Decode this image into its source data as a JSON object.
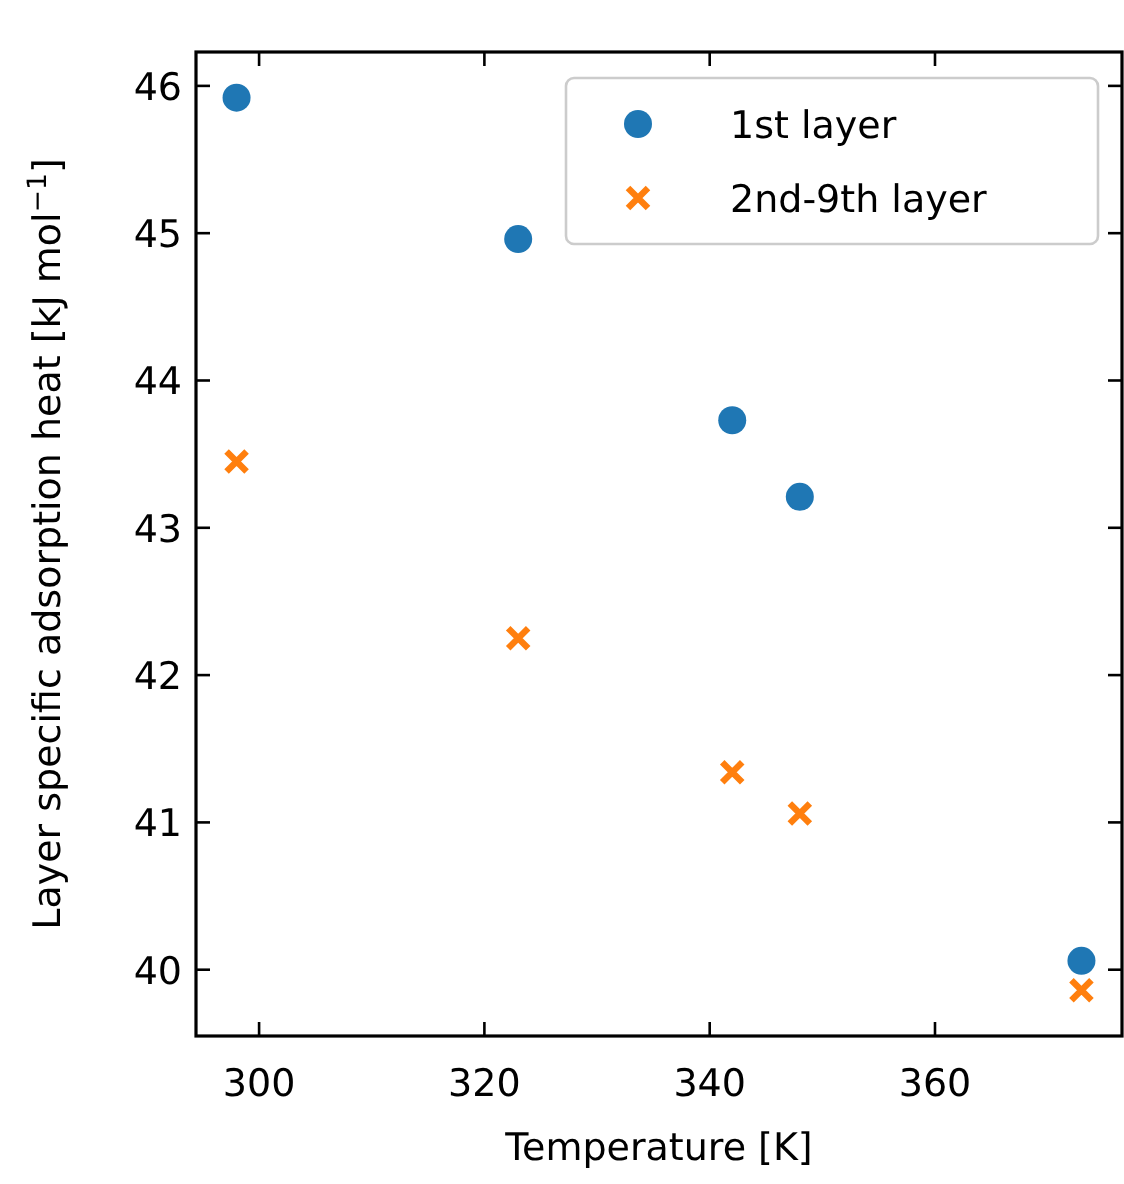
{
  "chart_data": {
    "type": "scatter",
    "xlabel": "Temperature [K]",
    "ylabel": "Layer specific adsorption heat [kJ mol$^{−1}$]",
    "x": [
      298,
      323,
      342,
      348,
      373
    ],
    "series": [
      {
        "name": "1st layer",
        "color": "#1f77b4",
        "marker": "circle",
        "values": [
          45.92,
          44.96,
          43.73,
          43.21,
          40.06
        ]
      },
      {
        "name": "2nd-9th layer",
        "color": "#ff7f0e",
        "marker": "cross",
        "values": [
          43.45,
          42.25,
          41.34,
          41.06,
          39.86
        ]
      }
    ],
    "xlim": [
      294.4,
      376.6
    ],
    "xticks": [
      300,
      320,
      340,
      360
    ],
    "ylim": [
      39.55,
      46.23
    ],
    "yticks": [
      40,
      41,
      42,
      43,
      44,
      45,
      46
    ],
    "grid": false,
    "legend": "top right"
  }
}
